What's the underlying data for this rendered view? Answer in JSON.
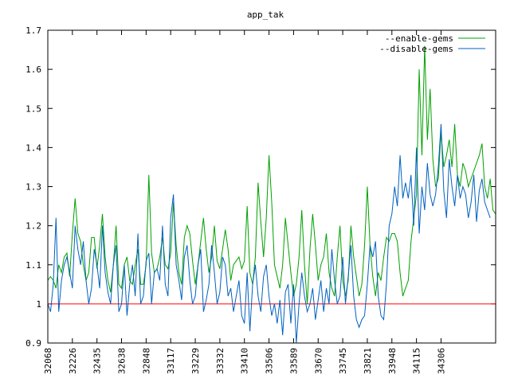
{
  "chart_data": {
    "type": "line",
    "title": "app_tak",
    "xlabel": "",
    "ylabel": "",
    "ylim": [
      0.9,
      1.7
    ],
    "yticks": [
      "0.9",
      "1",
      "1.1",
      "1.2",
      "1.3",
      "1.4",
      "1.5",
      "1.6",
      "1.7"
    ],
    "x_tick_labels": [
      "32068",
      "32226",
      "32435",
      "32638",
      "32848",
      "33117",
      "33229",
      "33332",
      "33410",
      "33506",
      "33589",
      "33670",
      "33745",
      "33821",
      "33948",
      "34115",
      "34306"
    ],
    "x_tick_positions": [
      0,
      9,
      18,
      27,
      36,
      45,
      54,
      63,
      72,
      81,
      90,
      99,
      108,
      117,
      126,
      135,
      144
    ],
    "grid": true,
    "legend_position": "top-right",
    "baseline": {
      "value": 1,
      "color": "#ff0000"
    },
    "series": [
      {
        "name": "--enable-gems",
        "color": "#00a000",
        "values": [
          1.06,
          1.07,
          1.06,
          1.04,
          1.1,
          1.08,
          1.12,
          1.13,
          1.07,
          1.18,
          1.27,
          1.18,
          1.16,
          1.1,
          1.06,
          1.08,
          1.17,
          1.17,
          1.09,
          1.15,
          1.23,
          1.12,
          1.06,
          1.03,
          1.1,
          1.2,
          1.05,
          1.04,
          1.1,
          1.12,
          1.06,
          1.05,
          1.1,
          1.14,
          1.05,
          1.05,
          1.1,
          1.33,
          1.13,
          1.08,
          1.09,
          1.12,
          1.17,
          1.1,
          1.09,
          1.13,
          1.26,
          1.15,
          1.08,
          1.05,
          1.17,
          1.2,
          1.18,
          1.11,
          1.05,
          1.1,
          1.16,
          1.22,
          1.14,
          1.08,
          1.12,
          1.2,
          1.11,
          1.09,
          1.14,
          1.19,
          1.14,
          1.06,
          1.1,
          1.11,
          1.12,
          1.09,
          1.11,
          1.25,
          1.08,
          1.05,
          1.12,
          1.31,
          1.21,
          1.12,
          1.22,
          1.38,
          1.26,
          1.1,
          1.07,
          1.04,
          1.1,
          1.22,
          1.15,
          1.08,
          1.02,
          1.05,
          1.12,
          1.24,
          1.1,
          1.0,
          1.14,
          1.23,
          1.15,
          1.06,
          1.1,
          1.12,
          1.18,
          1.08,
          1.04,
          1.02,
          1.12,
          1.2,
          1.06,
          1.02,
          1.06,
          1.2,
          1.12,
          1.07,
          1.02,
          1.05,
          1.15,
          1.3,
          1.15,
          1.07,
          1.02,
          1.08,
          1.06,
          1.12,
          1.17,
          1.16,
          1.18,
          1.18,
          1.16,
          1.08,
          1.02,
          1.04,
          1.06,
          1.16,
          1.22,
          1.28,
          1.6,
          1.38,
          1.66,
          1.42,
          1.55,
          1.37,
          1.3,
          1.32,
          1.44,
          1.35,
          1.38,
          1.42,
          1.35,
          1.46,
          1.33,
          1.3,
          1.36,
          1.34,
          1.3,
          1.32,
          1.34,
          1.36,
          1.38,
          1.41,
          1.3,
          1.27,
          1.32,
          1.24,
          1.23
        ]
      },
      {
        "name": "--disable-gems",
        "color": "#0060c0",
        "values": [
          1.0,
          0.98,
          1.05,
          1.22,
          0.98,
          1.06,
          1.1,
          1.12,
          1.08,
          1.04,
          1.2,
          1.14,
          1.1,
          1.16,
          1.06,
          1.0,
          1.04,
          1.14,
          1.1,
          1.04,
          1.2,
          1.08,
          1.03,
          1.0,
          1.1,
          1.15,
          0.98,
          1.0,
          1.1,
          0.97,
          1.05,
          1.1,
          1.02,
          1.18,
          1.0,
          1.02,
          1.11,
          1.13,
          1.0,
          1.08,
          1.09,
          1.06,
          1.2,
          1.05,
          1.02,
          1.22,
          1.28,
          1.1,
          1.06,
          1.01,
          1.12,
          1.15,
          1.06,
          1.0,
          1.02,
          1.1,
          1.14,
          0.98,
          1.01,
          1.05,
          1.15,
          1.08,
          1.0,
          1.03,
          1.12,
          1.1,
          1.02,
          1.04,
          0.98,
          1.02,
          1.06,
          0.97,
          0.95,
          1.08,
          0.93,
          1.05,
          1.1,
          1.02,
          0.98,
          1.07,
          1.1,
          1.02,
          0.97,
          1.0,
          0.95,
          1.01,
          0.92,
          1.03,
          1.05,
          0.95,
          1.05,
          0.9,
          1.0,
          1.08,
          1.02,
          0.98,
          1.0,
          1.04,
          0.96,
          1.01,
          1.06,
          0.98,
          1.04,
          1.0,
          1.14,
          1.06,
          1.0,
          1.02,
          1.12,
          1.0,
          1.07,
          1.15,
          1.02,
          0.96,
          0.94,
          0.96,
          0.97,
          1.05,
          1.15,
          1.12,
          1.16,
          1.02,
          0.97,
          0.96,
          1.05,
          1.2,
          1.23,
          1.3,
          1.25,
          1.38,
          1.27,
          1.31,
          1.27,
          1.33,
          1.2,
          1.4,
          1.18,
          1.3,
          1.24,
          1.36,
          1.28,
          1.25,
          1.28,
          1.35,
          1.46,
          1.29,
          1.22,
          1.37,
          1.3,
          1.25,
          1.33,
          1.27,
          1.3,
          1.28,
          1.22,
          1.26,
          1.33,
          1.21,
          1.29,
          1.32,
          1.26,
          1.24,
          1.22
        ]
      }
    ]
  }
}
